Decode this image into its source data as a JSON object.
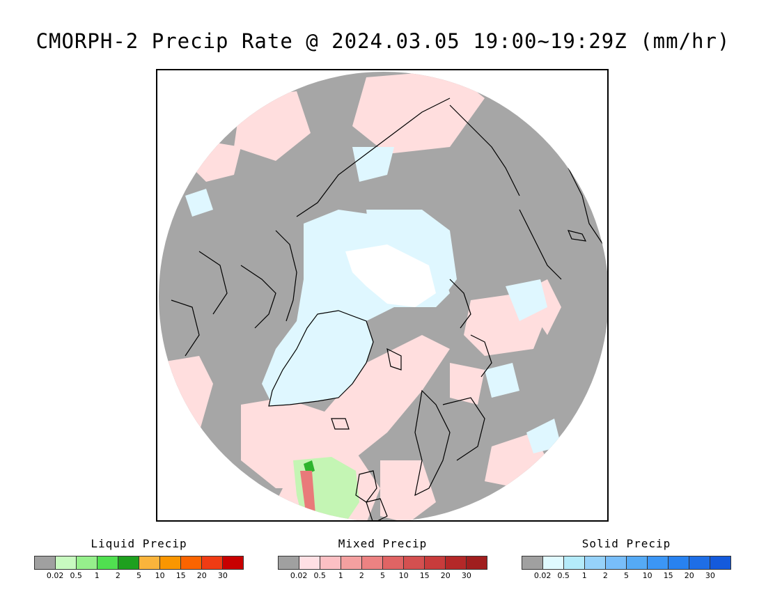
{
  "title": "CMORPH-2 Precip Rate @ 2024.03.05 19:00~19:29Z (mm/hr)",
  "map": {
    "colors": {
      "no_precip": "#a6a6a6",
      "mixed_light": "#ffdede",
      "solid_light": "#dff7ff",
      "solid_white": "#ffffff",
      "solid_blue": "#8fd0f0",
      "liquid_light": "#c4f5b4",
      "liquid_green": "#2db42d",
      "mixed_red": "#e97a7a",
      "coastline": "#000000"
    }
  },
  "legends": [
    {
      "title": "Liquid Precip",
      "colors": [
        "#a0a0a0",
        "#c8fac0",
        "#96f08c",
        "#50e050",
        "#1ea01e",
        "#fab43c",
        "#fa9600",
        "#fa6400",
        "#f03c14",
        "#c80000"
      ],
      "labels": [
        "0.02",
        "0.5",
        "1",
        "2",
        "5",
        "10",
        "15",
        "20",
        "30"
      ]
    },
    {
      "title": "Mixed Precip",
      "colors": [
        "#a0a0a0",
        "#ffe0e4",
        "#fcc0c4",
        "#f4a0a0",
        "#ec8282",
        "#e06464",
        "#d45050",
        "#c83c3c",
        "#b42828",
        "#a01e1e"
      ],
      "labels": [
        "0.02",
        "0.5",
        "1",
        "2",
        "5",
        "10",
        "15",
        "20",
        "30"
      ]
    },
    {
      "title": "Solid Precip",
      "colors": [
        "#a0a0a0",
        "#e0faff",
        "#b4ebfa",
        "#96d2fa",
        "#78befa",
        "#55aaf5",
        "#3c96f5",
        "#2882f0",
        "#1e6ee6",
        "#145adc"
      ],
      "labels": [
        "0.02",
        "0.5",
        "1",
        "2",
        "5",
        "10",
        "15",
        "20",
        "30"
      ]
    }
  ]
}
